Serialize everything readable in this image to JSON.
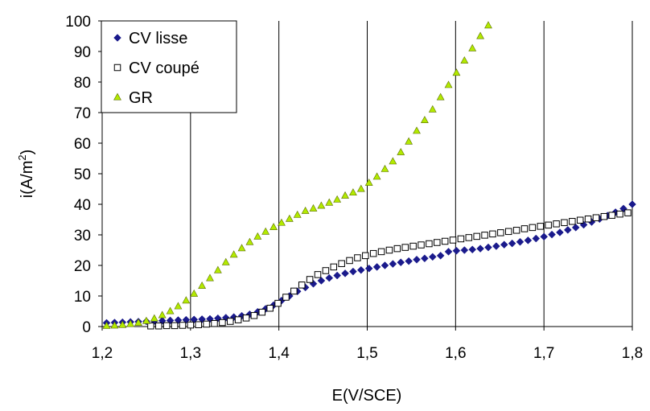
{
  "chart_data": {
    "type": "scatter",
    "xlabel": "E(V/SCE)",
    "ylabel": "i(A/m",
    "ylabel_sup": "2",
    "ylabel_close": ")",
    "xlim": [
      1.2,
      1.8
    ],
    "ylim": [
      0,
      100
    ],
    "x_ticks": [
      1.2,
      1.3,
      1.4,
      1.5,
      1.6,
      1.7,
      1.8
    ],
    "x_tick_labels": [
      "1,2",
      "1,3",
      "1,4",
      "1,5",
      "1,6",
      "1,7",
      "1,8"
    ],
    "y_ticks": [
      0,
      10,
      20,
      30,
      40,
      50,
      60,
      70,
      80,
      90,
      100
    ],
    "y_tick_labels": [
      "0",
      "10",
      "20",
      "30",
      "40",
      "50",
      "60",
      "70",
      "80",
      "90",
      "100"
    ],
    "grid": "vertical",
    "legend_position": "top-left",
    "series": [
      {
        "name": "CV lisse",
        "marker": "diamond",
        "color": "#1a1a8c",
        "points": [
          [
            1.205,
            1.2
          ],
          [
            1.214,
            1.3
          ],
          [
            1.223,
            1.4
          ],
          [
            1.232,
            1.5
          ],
          [
            1.241,
            1.6
          ],
          [
            1.25,
            1.7
          ],
          [
            1.259,
            1.8
          ],
          [
            1.268,
            1.9
          ],
          [
            1.277,
            2.0
          ],
          [
            1.286,
            2.1
          ],
          [
            1.295,
            2.2
          ],
          [
            1.304,
            2.3
          ],
          [
            1.313,
            2.4
          ],
          [
            1.322,
            2.5
          ],
          [
            1.331,
            2.7
          ],
          [
            1.34,
            2.9
          ],
          [
            1.349,
            3.1
          ],
          [
            1.358,
            3.5
          ],
          [
            1.367,
            4.0
          ],
          [
            1.376,
            4.8
          ],
          [
            1.385,
            5.8
          ],
          [
            1.394,
            7.0
          ],
          [
            1.403,
            8.5
          ],
          [
            1.412,
            10.0
          ],
          [
            1.421,
            11.5
          ],
          [
            1.43,
            12.8
          ],
          [
            1.439,
            14.0
          ],
          [
            1.448,
            15.0
          ],
          [
            1.457,
            15.9
          ],
          [
            1.466,
            16.7
          ],
          [
            1.475,
            17.4
          ],
          [
            1.484,
            18.0
          ],
          [
            1.493,
            18.5
          ],
          [
            1.502,
            19.0
          ],
          [
            1.511,
            19.5
          ],
          [
            1.52,
            20.0
          ],
          [
            1.529,
            20.5
          ],
          [
            1.538,
            21.0
          ],
          [
            1.547,
            21.4
          ],
          [
            1.556,
            21.9
          ],
          [
            1.565,
            22.3
          ],
          [
            1.574,
            22.8
          ],
          [
            1.583,
            23.2
          ],
          [
            1.592,
            24.5
          ],
          [
            1.601,
            24.8
          ],
          [
            1.61,
            25.0
          ],
          [
            1.619,
            25.2
          ],
          [
            1.628,
            25.5
          ],
          [
            1.637,
            25.9
          ],
          [
            1.646,
            26.3
          ],
          [
            1.655,
            26.8
          ],
          [
            1.664,
            27.2
          ],
          [
            1.673,
            27.7
          ],
          [
            1.682,
            28.2
          ],
          [
            1.691,
            28.8
          ],
          [
            1.7,
            29.4
          ],
          [
            1.709,
            30.1
          ],
          [
            1.718,
            30.8
          ],
          [
            1.727,
            31.6
          ],
          [
            1.736,
            32.4
          ],
          [
            1.745,
            33.3
          ],
          [
            1.754,
            34.2
          ],
          [
            1.763,
            35.2
          ],
          [
            1.772,
            36.3
          ],
          [
            1.781,
            37.4
          ],
          [
            1.79,
            38.6
          ],
          [
            1.8,
            40.0
          ]
        ]
      },
      {
        "name": "CV coupé",
        "marker": "square-open",
        "color": "#000000",
        "points": [
          [
            1.255,
            0.2
          ],
          [
            1.264,
            0.2
          ],
          [
            1.273,
            0.3
          ],
          [
            1.282,
            0.3
          ],
          [
            1.291,
            0.4
          ],
          [
            1.3,
            0.5
          ],
          [
            1.309,
            0.6
          ],
          [
            1.318,
            0.8
          ],
          [
            1.327,
            1.0
          ],
          [
            1.336,
            1.3
          ],
          [
            1.345,
            1.7
          ],
          [
            1.354,
            2.2
          ],
          [
            1.363,
            2.8
          ],
          [
            1.372,
            3.6
          ],
          [
            1.381,
            4.7
          ],
          [
            1.39,
            6.0
          ],
          [
            1.399,
            7.6
          ],
          [
            1.408,
            9.6
          ],
          [
            1.417,
            11.6
          ],
          [
            1.426,
            13.6
          ],
          [
            1.435,
            15.4
          ],
          [
            1.444,
            17.0
          ],
          [
            1.453,
            18.3
          ],
          [
            1.462,
            19.5
          ],
          [
            1.471,
            20.6
          ],
          [
            1.48,
            21.6
          ],
          [
            1.489,
            22.5
          ],
          [
            1.498,
            23.2
          ],
          [
            1.507,
            23.9
          ],
          [
            1.516,
            24.5
          ],
          [
            1.525,
            25.0
          ],
          [
            1.534,
            25.5
          ],
          [
            1.543,
            25.9
          ],
          [
            1.552,
            26.3
          ],
          [
            1.561,
            26.7
          ],
          [
            1.57,
            27.1
          ],
          [
            1.579,
            27.5
          ],
          [
            1.588,
            27.9
          ],
          [
            1.597,
            28.3
          ],
          [
            1.606,
            28.7
          ],
          [
            1.615,
            29.1
          ],
          [
            1.624,
            29.5
          ],
          [
            1.633,
            29.9
          ],
          [
            1.642,
            30.3
          ],
          [
            1.651,
            30.7
          ],
          [
            1.66,
            31.1
          ],
          [
            1.669,
            31.5
          ],
          [
            1.678,
            32.0
          ],
          [
            1.687,
            32.4
          ],
          [
            1.696,
            32.8
          ],
          [
            1.705,
            33.2
          ],
          [
            1.714,
            33.6
          ],
          [
            1.723,
            34.0
          ],
          [
            1.732,
            34.4
          ],
          [
            1.741,
            34.8
          ],
          [
            1.75,
            35.2
          ],
          [
            1.759,
            35.6
          ],
          [
            1.768,
            36.0
          ],
          [
            1.777,
            36.4
          ],
          [
            1.786,
            36.8
          ],
          [
            1.795,
            37.2
          ]
        ]
      },
      {
        "name": "GR",
        "marker": "triangle",
        "color": "#b3ea00",
        "points": [
          [
            1.205,
            0.2
          ],
          [
            1.214,
            0.3
          ],
          [
            1.223,
            0.5
          ],
          [
            1.232,
            0.8
          ],
          [
            1.241,
            1.2
          ],
          [
            1.25,
            1.8
          ],
          [
            1.259,
            2.6
          ],
          [
            1.268,
            3.7
          ],
          [
            1.277,
            5.0
          ],
          [
            1.286,
            6.6
          ],
          [
            1.295,
            8.5
          ],
          [
            1.304,
            10.7
          ],
          [
            1.313,
            13.3
          ],
          [
            1.322,
            15.8
          ],
          [
            1.331,
            18.4
          ],
          [
            1.34,
            21.0
          ],
          [
            1.349,
            23.5
          ],
          [
            1.358,
            25.6
          ],
          [
            1.367,
            27.6
          ],
          [
            1.376,
            29.4
          ],
          [
            1.385,
            31.0
          ],
          [
            1.394,
            32.5
          ],
          [
            1.403,
            33.9
          ],
          [
            1.412,
            35.2
          ],
          [
            1.421,
            36.5
          ],
          [
            1.43,
            37.8
          ],
          [
            1.439,
            38.6
          ],
          [
            1.448,
            39.5
          ],
          [
            1.457,
            40.5
          ],
          [
            1.466,
            41.5
          ],
          [
            1.475,
            42.8
          ],
          [
            1.484,
            43.8
          ],
          [
            1.493,
            45.0
          ],
          [
            1.502,
            47.0
          ],
          [
            1.511,
            49.0
          ],
          [
            1.52,
            51.5
          ],
          [
            1.529,
            54.0
          ],
          [
            1.538,
            57.0
          ],
          [
            1.547,
            60.5
          ],
          [
            1.556,
            64.0
          ],
          [
            1.565,
            67.5
          ],
          [
            1.574,
            71.0
          ],
          [
            1.583,
            75.0
          ],
          [
            1.592,
            79.0
          ],
          [
            1.601,
            83.0
          ],
          [
            1.61,
            87.0
          ],
          [
            1.619,
            91.0
          ],
          [
            1.628,
            95.0
          ],
          [
            1.637,
            98.5
          ]
        ]
      }
    ]
  }
}
